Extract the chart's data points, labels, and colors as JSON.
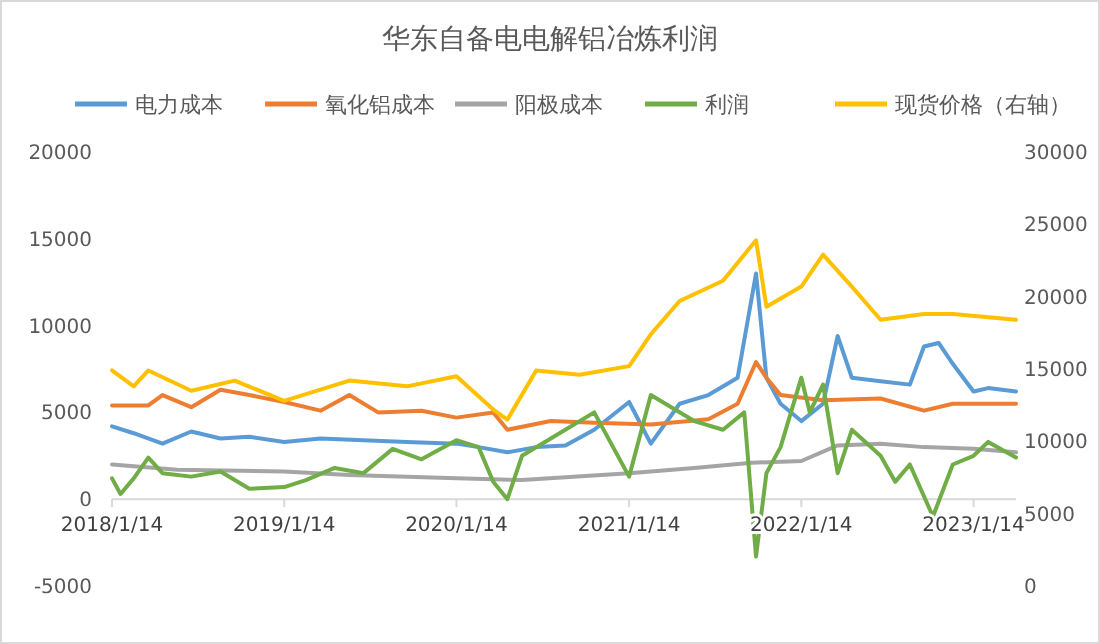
{
  "chart_data": {
    "type": "line",
    "title": "华东自备电电解铝冶炼利润",
    "legend": "top",
    "grid": false,
    "xlim": [
      "2018-01-14",
      "2023-04-14"
    ],
    "xticks": [
      {
        "value": "2018-01-14",
        "label": "2018/1/14"
      },
      {
        "value": "2019-01-14",
        "label": "2019/1/14"
      },
      {
        "value": "2020-01-14",
        "label": "2020/1/14"
      },
      {
        "value": "2021-01-14",
        "label": "2021/1/14"
      },
      {
        "value": "2022-01-14",
        "label": "2022/1/14"
      },
      {
        "value": "2023-01-14",
        "label": "2023/1/14"
      }
    ],
    "ylim": [
      -5000,
      20000
    ],
    "yticks": [
      -5000,
      0,
      5000,
      10000,
      15000,
      20000
    ],
    "y2lim": [
      0,
      30000
    ],
    "y2ticks": [
      0,
      5000,
      10000,
      15000,
      20000,
      25000,
      30000
    ],
    "series": [
      {
        "name": "电力成本",
        "color": "#5b9bd5",
        "x": [
          "2018-01-14",
          "2018-03-01",
          "2018-05-01",
          "2018-07-01",
          "2018-09-01",
          "2018-11-01",
          "2019-01-14",
          "2019-04-01",
          "2019-07-01",
          "2019-10-01",
          "2020-01-14",
          "2020-03-01",
          "2020-05-01",
          "2020-07-01",
          "2020-09-01",
          "2020-11-01",
          "2021-01-14",
          "2021-03-01",
          "2021-05-01",
          "2021-07-01",
          "2021-09-01",
          "2021-10-10",
          "2021-11-01",
          "2021-12-01",
          "2022-01-14",
          "2022-03-01",
          "2022-04-01",
          "2022-05-01",
          "2022-07-01",
          "2022-09-01",
          "2022-10-01",
          "2022-11-01",
          "2022-12-01",
          "2023-01-14",
          "2023-02-14",
          "2023-04-14"
        ],
        "values": [
          4200,
          3800,
          3200,
          3900,
          3500,
          3600,
          3300,
          3500,
          3400,
          3300,
          3200,
          3000,
          2700,
          3000,
          3100,
          4000,
          5600,
          3200,
          5500,
          6000,
          7000,
          13000,
          7000,
          5500,
          4500,
          5500,
          9400,
          7000,
          6800,
          6600,
          8800,
          9000,
          7800,
          6200,
          6400,
          6200
        ]
      },
      {
        "name": "氧化铝成本",
        "color": "#ed7d31",
        "x": [
          "2018-01-14",
          "2018-04-01",
          "2018-05-01",
          "2018-07-01",
          "2018-09-01",
          "2018-11-01",
          "2019-01-14",
          "2019-04-01",
          "2019-06-01",
          "2019-08-01",
          "2019-11-01",
          "2020-01-14",
          "2020-04-01",
          "2020-05-01",
          "2020-08-01",
          "2020-11-01",
          "2021-03-01",
          "2021-07-01",
          "2021-09-01",
          "2021-10-10",
          "2021-11-01",
          "2021-12-01",
          "2022-03-01",
          "2022-07-01",
          "2022-10-01",
          "2022-12-01",
          "2023-04-14"
        ],
        "values": [
          5400,
          5400,
          6000,
          5300,
          6300,
          6000,
          5600,
          5100,
          6000,
          5000,
          5100,
          4700,
          5000,
          4000,
          4500,
          4400,
          4300,
          4600,
          5500,
          7900,
          7000,
          6000,
          5700,
          5800,
          5100,
          5500,
          5500
        ]
      },
      {
        "name": "阳极成本",
        "color": "#a5a5a5",
        "x": [
          "2018-01-14",
          "2018-06-01",
          "2019-01-14",
          "2019-06-01",
          "2020-01-14",
          "2020-06-01",
          "2021-01-14",
          "2021-06-01",
          "2021-10-01",
          "2022-01-14",
          "2022-04-01",
          "2022-07-01",
          "2022-10-01",
          "2023-01-14",
          "2023-04-14"
        ],
        "values": [
          2000,
          1700,
          1600,
          1400,
          1200,
          1100,
          1500,
          1800,
          2100,
          2200,
          3100,
          3200,
          3000,
          2900,
          2700
        ]
      },
      {
        "name": "利润",
        "color": "#70ad47",
        "x": [
          "2018-01-14",
          "2018-02-01",
          "2018-03-01",
          "2018-04-01",
          "2018-05-01",
          "2018-07-01",
          "2018-09-01",
          "2018-11-01",
          "2019-01-14",
          "2019-03-01",
          "2019-05-01",
          "2019-07-01",
          "2019-09-01",
          "2019-11-01",
          "2020-01-14",
          "2020-03-01",
          "2020-04-01",
          "2020-05-01",
          "2020-06-01",
          "2020-08-01",
          "2020-11-01",
          "2021-01-14",
          "2021-03-01",
          "2021-06-01",
          "2021-08-01",
          "2021-09-15",
          "2021-10-10",
          "2021-11-01",
          "2021-12-01",
          "2022-01-14",
          "2022-02-01",
          "2022-03-01",
          "2022-04-01",
          "2022-05-01",
          "2022-07-01",
          "2022-08-01",
          "2022-09-01",
          "2022-10-20",
          "2022-12-01",
          "2023-01-14",
          "2023-02-14",
          "2023-04-14"
        ],
        "values": [
          1200,
          300,
          1200,
          2400,
          1500,
          1300,
          1600,
          600,
          700,
          1100,
          1800,
          1500,
          2900,
          2300,
          3400,
          3000,
          1000,
          0,
          2500,
          3500,
          5000,
          1300,
          6000,
          4500,
          4000,
          5000,
          -3300,
          1500,
          3000,
          7000,
          5000,
          6600,
          1500,
          4000,
          2500,
          1000,
          2000,
          -1000,
          2000,
          2500,
          3300,
          2400
        ]
      },
      {
        "name": "现货价格（右轴）",
        "color": "#ffc000",
        "axis": "y2",
        "x": [
          "2018-01-14",
          "2018-03-01",
          "2018-04-01",
          "2018-07-01",
          "2018-10-01",
          "2019-01-14",
          "2019-06-01",
          "2019-10-01",
          "2020-01-14",
          "2020-04-01",
          "2020-05-01",
          "2020-07-01",
          "2020-10-01",
          "2021-01-14",
          "2021-03-01",
          "2021-05-01",
          "2021-08-01",
          "2021-10-10",
          "2021-11-01",
          "2022-01-14",
          "2022-03-01",
          "2022-05-01",
          "2022-07-01",
          "2022-10-01",
          "2022-12-01",
          "2023-04-14"
        ],
        "values": [
          14900,
          13800,
          14900,
          13500,
          14200,
          12800,
          14200,
          13800,
          14500,
          12200,
          11500,
          14900,
          14600,
          15200,
          17400,
          19700,
          21100,
          23900,
          19300,
          20700,
          22900,
          20700,
          18400,
          18800,
          18800,
          18400
        ]
      }
    ]
  }
}
